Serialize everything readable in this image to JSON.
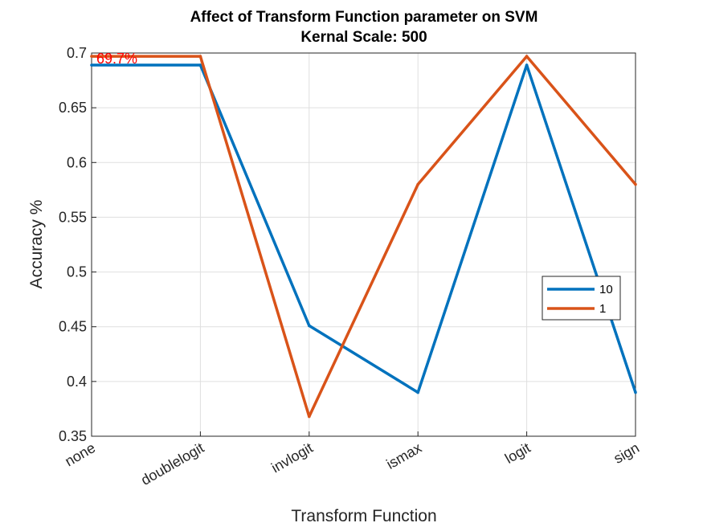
{
  "chart_data": {
    "type": "line",
    "title": "Affect of Transform Function parameter on SVM",
    "subtitle": "Kernal Scale: 500",
    "xlabel": "Transform Function",
    "ylabel": "Accuracy %",
    "categories": [
      "none",
      "doublelogit",
      "invlogit",
      "ismax",
      "logit",
      "sign"
    ],
    "ylim": [
      0.35,
      0.7
    ],
    "yticks": [
      "0.35",
      "0.4",
      "0.45",
      "0.5",
      "0.55",
      "0.6",
      "0.65",
      "0.7"
    ],
    "grid": true,
    "legend_position": "right",
    "series": [
      {
        "name": "10",
        "color": "#0072BD",
        "values": [
          0.689,
          0.689,
          0.451,
          0.39,
          0.689,
          0.39
        ]
      },
      {
        "name": "1",
        "color": "#D95319",
        "values": [
          0.697,
          0.697,
          0.368,
          0.58,
          0.697,
          0.58
        ]
      }
    ],
    "annotations": [
      {
        "text": "69.7%",
        "category": "none",
        "value": 0.697,
        "color": "#FF0000"
      }
    ]
  }
}
